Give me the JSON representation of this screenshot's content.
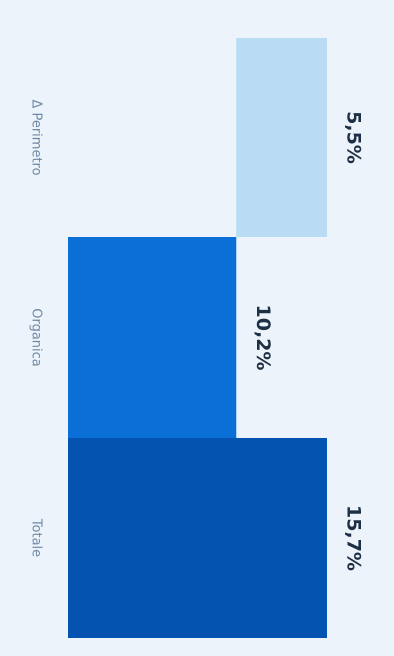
{
  "chart_data": {
    "type": "bar",
    "orientation": "waterfall",
    "categories": [
      "Δ Perimetro",
      "Organica",
      "Totale"
    ],
    "values": [
      5.5,
      10.2,
      15.7
    ],
    "value_labels": [
      "5,5%",
      "10,2%",
      "15,7%"
    ],
    "bases": [
      10.2,
      0,
      0
    ],
    "colors": [
      "#b9dcf4",
      "#0a6fd6",
      "#0553b0"
    ],
    "xlim": [
      0,
      15.7
    ],
    "grid": false,
    "legend": "none"
  }
}
